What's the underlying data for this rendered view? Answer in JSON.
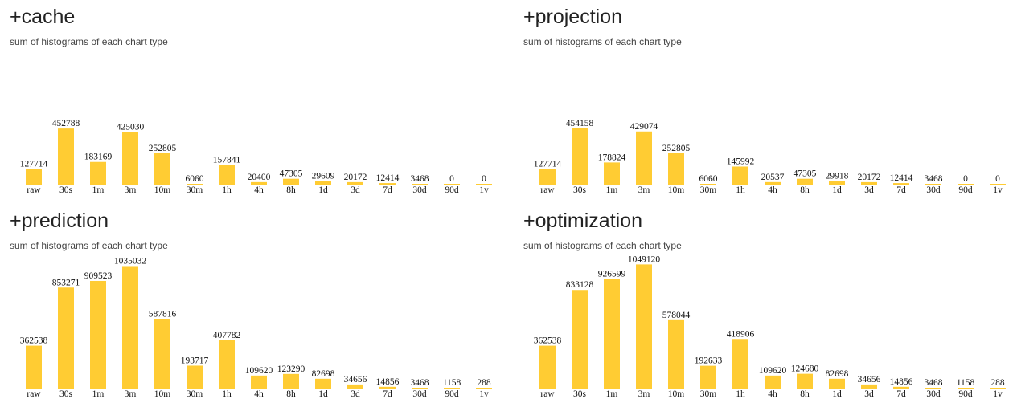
{
  "colors": {
    "bar": "#ffcc33",
    "text": "#222222"
  },
  "chart_data": [
    {
      "type": "bar",
      "title": "+cache",
      "subtitle": "sum of histograms of each chart type",
      "categories": [
        "raw",
        "30s",
        "1m",
        "3m",
        "10m",
        "30m",
        "1h",
        "4h",
        "8h",
        "1d",
        "3d",
        "7d",
        "30d",
        "90d",
        "1v"
      ],
      "values": [
        127714,
        452788,
        183169,
        425030,
        252805,
        6060,
        157841,
        20400,
        47305,
        29609,
        20172,
        12414,
        3468,
        0,
        0
      ]
    },
    {
      "type": "bar",
      "title": "+projection",
      "subtitle": "sum of histograms of each chart type",
      "categories": [
        "raw",
        "30s",
        "1m",
        "3m",
        "10m",
        "30m",
        "1h",
        "4h",
        "8h",
        "1d",
        "3d",
        "7d",
        "30d",
        "90d",
        "1v"
      ],
      "values": [
        127714,
        454158,
        178824,
        429074,
        252805,
        6060,
        145992,
        20537,
        47305,
        29918,
        20172,
        12414,
        3468,
        0,
        0
      ]
    },
    {
      "type": "bar",
      "title": "+prediction",
      "subtitle": "sum of histograms of each chart type",
      "categories": [
        "raw",
        "30s",
        "1m",
        "3m",
        "10m",
        "30m",
        "1h",
        "4h",
        "8h",
        "1d",
        "3d",
        "7d",
        "30d",
        "90d",
        "1v"
      ],
      "values": [
        362538,
        853271,
        909523,
        1035032,
        587816,
        193717,
        407782,
        109620,
        123290,
        82698,
        34656,
        14856,
        3468,
        1158,
        288
      ]
    },
    {
      "type": "bar",
      "title": "+optimization",
      "subtitle": "sum of histograms of each chart type",
      "categories": [
        "raw",
        "30s",
        "1m",
        "3m",
        "10m",
        "30m",
        "1h",
        "4h",
        "8h",
        "1d",
        "3d",
        "7d",
        "30d",
        "90d",
        "1v"
      ],
      "values": [
        362538,
        833128,
        926599,
        1049120,
        578044,
        192633,
        418906,
        109620,
        124680,
        82698,
        34656,
        14856,
        3468,
        1158,
        288
      ]
    }
  ]
}
